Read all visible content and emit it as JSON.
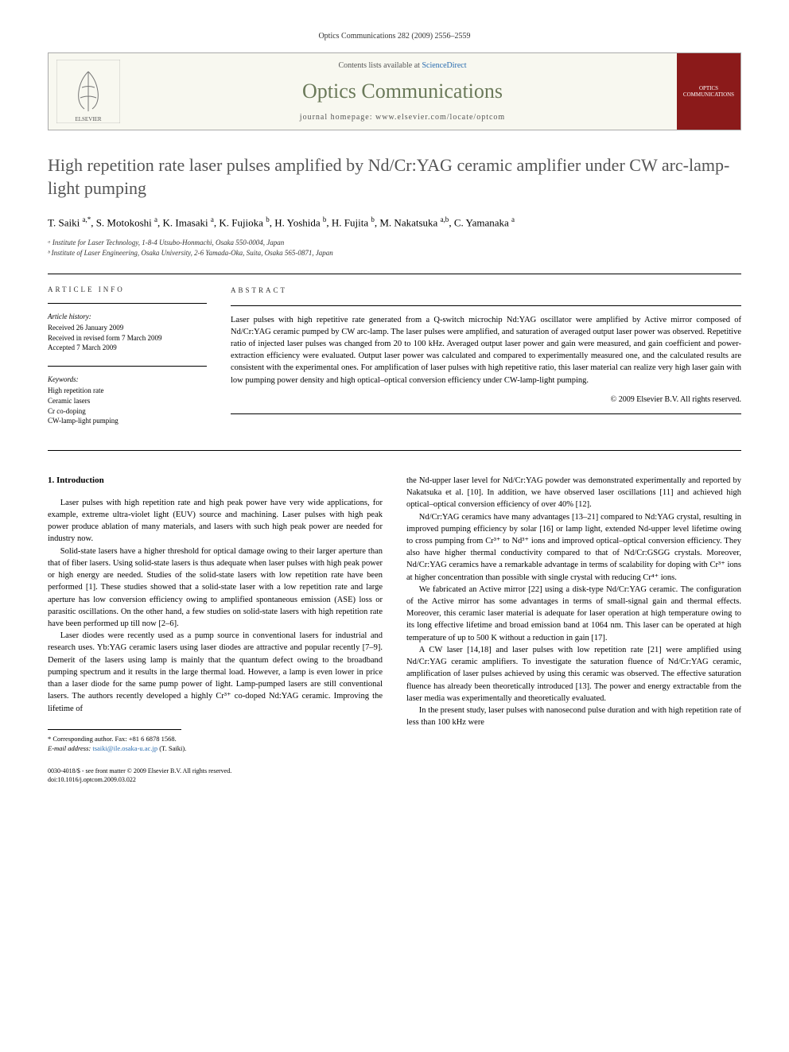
{
  "citation": "Optics Communications 282 (2009) 2556–2559",
  "masthead": {
    "contents_prefix": "Contents lists available at ",
    "contents_link": "ScienceDirect",
    "journal": "Optics Communications",
    "homepage_prefix": "journal homepage: ",
    "homepage": "www.elsevier.com/locate/optcom",
    "cover_text": "OPTICS COMMUNICATIONS"
  },
  "title": "High repetition rate laser pulses amplified by Nd/Cr:YAG ceramic amplifier under CW arc-lamp-light pumping",
  "authors_html": "T. Saiki <sup>a,*</sup>, S. Motokoshi <sup>a</sup>, K. Imasaki <sup>a</sup>, K. Fujioka <sup>b</sup>, H. Yoshida <sup>b</sup>, H. Fujita <sup>b</sup>, M. Nakatsuka <sup>a,b</sup>, C. Yamanaka <sup>a</sup>",
  "affiliations": [
    "ᵃ Institute for Laser Technology, 1-8-4 Utsubo-Honmachi, Osaka 550-0004, Japan",
    "ᵇ Institute of Laser Engineering, Osaka University, 2-6 Yamada-Oka, Suita, Osaka 565-0871, Japan"
  ],
  "article_info": {
    "heading": "ARTICLE INFO",
    "history_label": "Article history:",
    "history": [
      "Received 26 January 2009",
      "Received in revised form 7 March 2009",
      "Accepted 7 March 2009"
    ],
    "keywords_label": "Keywords:",
    "keywords": [
      "High repetition rate",
      "Ceramic lasers",
      "Cr co-doping",
      "CW-lamp-light pumping"
    ]
  },
  "abstract": {
    "heading": "ABSTRACT",
    "text": "Laser pulses with high repetitive rate generated from a Q-switch microchip Nd:YAG oscillator were amplified by Active mirror composed of Nd/Cr:YAG ceramic pumped by CW arc-lamp. The laser pulses were amplified, and saturation of averaged output laser power was observed. Repetitive ratio of injected laser pulses was changed from 20 to 100 kHz. Averaged output laser power and gain were measured, and gain coefficient and power-extraction efficiency were evaluated. Output laser power was calculated and compared to experimentally measured one, and the calculated results are consistent with the experimental ones. For amplification of laser pulses with high repetitive ratio, this laser material can realize very high laser gain with low pumping power density and high optical–optical conversion efficiency under CW-lamp-light pumping.",
    "copyright": "© 2009 Elsevier B.V. All rights reserved."
  },
  "body": {
    "section_heading": "1. Introduction",
    "left_paras": [
      "Laser pulses with high repetition rate and high peak power have very wide applications, for example, extreme ultra-violet light (EUV) source and machining. Laser pulses with high peak power produce ablation of many materials, and lasers with such high peak power are needed for industry now.",
      "Solid-state lasers have a higher threshold for optical damage owing to their larger aperture than that of fiber lasers. Using solid-state lasers is thus adequate when laser pulses with high peak power or high energy are needed. Studies of the solid-state lasers with low repetition rate have been performed [1]. These studies showed that a solid-state laser with a low repetition rate and large aperture has low conversion efficiency owing to amplified spontaneous emission (ASE) loss or parasitic oscillations. On the other hand, a few studies on solid-state lasers with high repetition rate have been performed up till now [2–6].",
      "Laser diodes were recently used as a pump source in conventional lasers for industrial and research uses. Yb:YAG ceramic lasers using laser diodes are attractive and popular recently [7–9]. Demerit of the lasers using lamp is mainly that the quantum defect owing to the broadband pumping spectrum and it results in the large thermal load. However, a lamp is even lower in price than a laser diode for the same pump power of light. Lamp-pumped lasers are still conventional lasers. The authors recently developed a highly Cr³⁺ co-doped Nd:YAG ceramic. Improving the lifetime of"
    ],
    "right_paras": [
      "the Nd-upper laser level for Nd/Cr:YAG powder was demonstrated experimentally and reported by Nakatsuka et al. [10]. In addition, we have observed laser oscillations [11] and achieved high optical–optical conversion efficiency of over 40% [12].",
      "Nd/Cr:YAG ceramics have many advantages [13–21] compared to Nd:YAG crystal, resulting in improved pumping efficiency by solar [16] or lamp light, extended Nd-upper level lifetime owing to cross pumping from Cr³⁺ to Nd³⁺ ions and improved optical–optical conversion efficiency. They also have higher thermal conductivity compared to that of Nd/Cr:GSGG crystals. Moreover, Nd/Cr:YAG ceramics have a remarkable advantage in terms of scalability for doping with Cr³⁺ ions at higher concentration than possible with single crystal with reducing Cr⁴⁺ ions.",
      "We fabricated an Active mirror [22] using a disk-type Nd/Cr:YAG ceramic. The configuration of the Active mirror has some advantages in terms of small-signal gain and thermal effects. Moreover, this ceramic laser material is adequate for laser operation at high temperature owing to its long effective lifetime and broad emission band at 1064 nm. This laser can be operated at high temperature of up to 500 K without a reduction in gain [17].",
      "A CW laser [14,18] and laser pulses with low repetition rate [21] were amplified using Nd/Cr:YAG ceramic amplifiers. To investigate the saturation fluence of Nd/Cr:YAG ceramic, amplification of laser pulses achieved by using this ceramic was observed. The effective saturation fluence has already been theoretically introduced [13]. The power and energy extractable from the laser media was experimentally and theoretically evaluated.",
      "In the present study, laser pulses with nanosecond pulse duration and with high repetition rate of less than 100 kHz were"
    ]
  },
  "footnote": {
    "corr": "* Corresponding author. Fax: +81 6 6878 1568.",
    "email_label": "E-mail address:",
    "email": "tsaiki@ile.osaka-u.ac.jp",
    "email_suffix": "(T. Saiki)."
  },
  "footer": {
    "line1": "0030-4018/$ - see front matter © 2009 Elsevier B.V. All rights reserved.",
    "line2": "doi:10.1016/j.optcom.2009.03.022"
  }
}
